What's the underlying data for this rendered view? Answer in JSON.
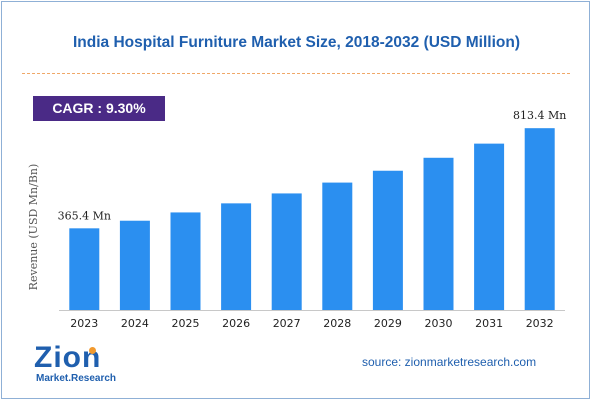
{
  "title": "India Hospital Furniture Market Size, 2018-2032 (USD Million)",
  "cagr": "CAGR : 9.30%",
  "source": "source: zionmarketresearch.com",
  "logo": {
    "main": "Zion",
    "sub": "Market.Research"
  },
  "colors": {
    "bar": "#2b8ff0",
    "title": "#1f5fae",
    "cagr_bg": "#4a2a86",
    "divider": "#f0a868"
  },
  "chart_data": {
    "type": "bar",
    "categories": [
      "2023",
      "2024",
      "2025",
      "2026",
      "2027",
      "2028",
      "2029",
      "2030",
      "2031",
      "2032"
    ],
    "values": [
      365.4,
      399.4,
      436.5,
      477.1,
      521.5,
      570.0,
      623.0,
      681.0,
      744.3,
      813.4
    ],
    "ylabel": "Revenue (USD Mn/Bn)",
    "ylim": [
      0,
      850
    ],
    "data_labels": [
      {
        "index": 0,
        "text": "365.4 Mn"
      },
      {
        "index": 9,
        "text": "813.4 Mn"
      }
    ],
    "grid": false,
    "legend": "none"
  }
}
